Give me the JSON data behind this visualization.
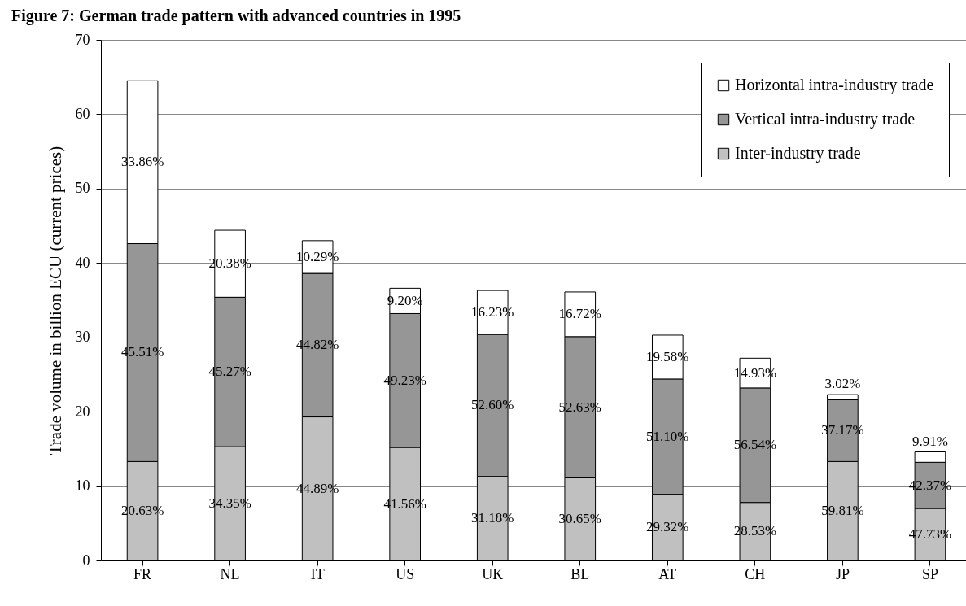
{
  "chart_data": {
    "type": "bar",
    "title": "Figure 7: German trade pattern with advanced countries in 1995",
    "ylabel": "Trade volume in billion ECU (current prices)",
    "categories": [
      "FR",
      "NL",
      "IT",
      "US",
      "UK",
      "BL",
      "AT",
      "CH",
      "JP",
      "SP"
    ],
    "stacked": true,
    "series": [
      {
        "name": "Inter-industry trade",
        "color": "#c0c0c0",
        "values": [
          13.3,
          15.3,
          19.3,
          15.2,
          11.3,
          11.1,
          8.9,
          7.8,
          13.3,
          7.0
        ]
      },
      {
        "name": "Vertical intra-industry trade",
        "color": "#969696",
        "values": [
          29.3,
          20.1,
          19.3,
          18.0,
          19.1,
          19.0,
          15.5,
          15.4,
          8.3,
          6.2
        ]
      },
      {
        "name": "Horizontal intra-industry trade",
        "color": "#ffffff",
        "values": [
          21.9,
          9.0,
          4.4,
          3.4,
          5.9,
          6.0,
          5.9,
          4.0,
          0.7,
          1.4
        ]
      }
    ],
    "annotations": [
      "20.63%",
      "45.51%",
      "33.86%",
      "34.35%",
      "45.27%",
      "20.38%",
      "44.89%",
      "44.82%",
      "10.29%",
      "41.56%",
      "49.23%",
      "9.20%",
      "31.18%",
      "52.60%",
      "16.23%",
      "30.65%",
      "52.63%",
      "16.72%",
      "29.32%",
      "51.10%",
      "19.58%",
      "28.53%",
      "56.54%",
      "14.93%",
      "59.81%",
      "37.17%",
      "3.02%",
      "47.73%",
      "42.37%",
      "9.91%"
    ],
    "ylim": [
      0,
      70
    ],
    "yticks": [
      0,
      10,
      20,
      30,
      40,
      50,
      60,
      70
    ],
    "grid": "y",
    "legend": "top right"
  }
}
